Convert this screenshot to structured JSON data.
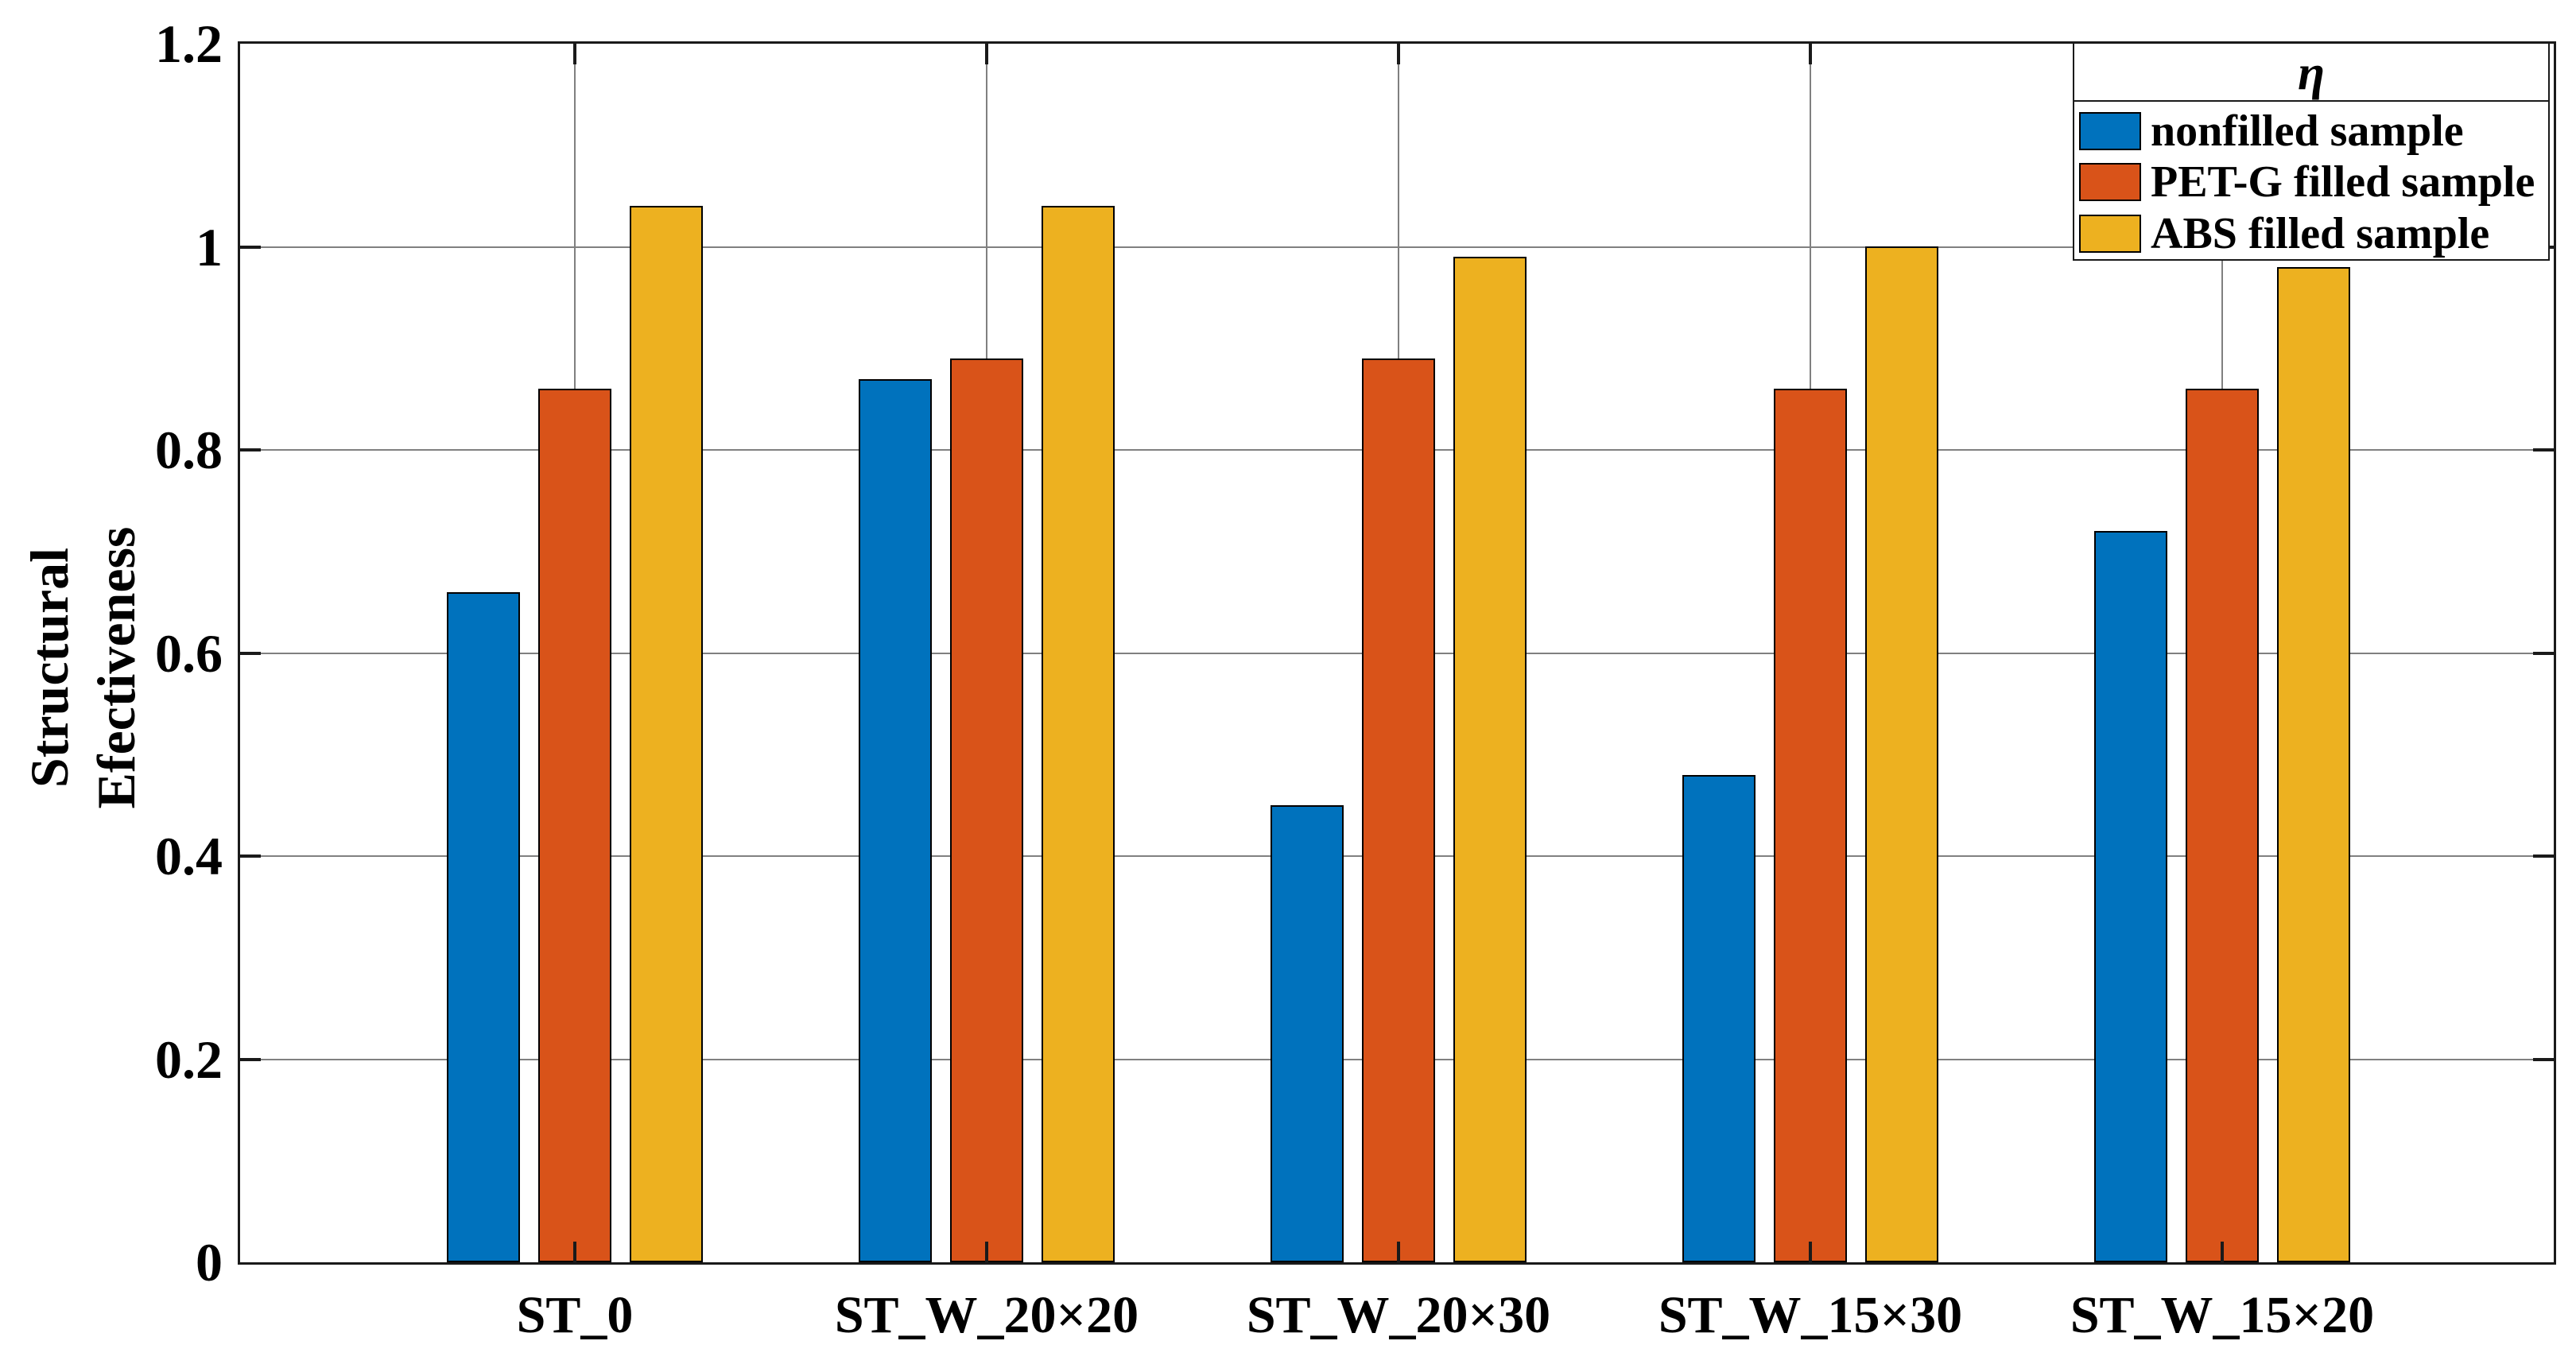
{
  "chart_data": {
    "type": "bar",
    "title": "",
    "categories": [
      "ST_0",
      "ST_W_20×20",
      "ST_W_20×30",
      "ST_W_15×30",
      "ST_W_15×20"
    ],
    "series": [
      {
        "name": "nonfilled sample",
        "color": "#0072BD",
        "values": [
          0.66,
          0.87,
          0.45,
          0.48,
          0.72
        ]
      },
      {
        "name": "PET-G filled sample",
        "color": "#D95319",
        "values": [
          0.86,
          0.89,
          0.89,
          0.86,
          0.86
        ]
      },
      {
        "name": "ABS filled sample",
        "color": "#EDB120",
        "values": [
          1.04,
          1.04,
          0.99,
          1.0,
          0.98
        ]
      }
    ],
    "ylabel_line1": "Structural",
    "ylabel_line2": "Efectiveness",
    "xlabel": "",
    "ylim": [
      0,
      1.2
    ],
    "yticks": [
      0,
      0.2,
      0.4,
      0.6,
      0.8,
      1,
      1.2
    ],
    "ytick_labels": [
      "0",
      "0.2",
      "0.4",
      "0.6",
      "0.8",
      "1",
      "1.2"
    ],
    "grid": true,
    "legend_title": "η",
    "legend_position": "top-right",
    "colors": {
      "grid": "#808080",
      "axis": "#1a1a1a",
      "text": "#000000",
      "background": "#ffffff"
    }
  }
}
